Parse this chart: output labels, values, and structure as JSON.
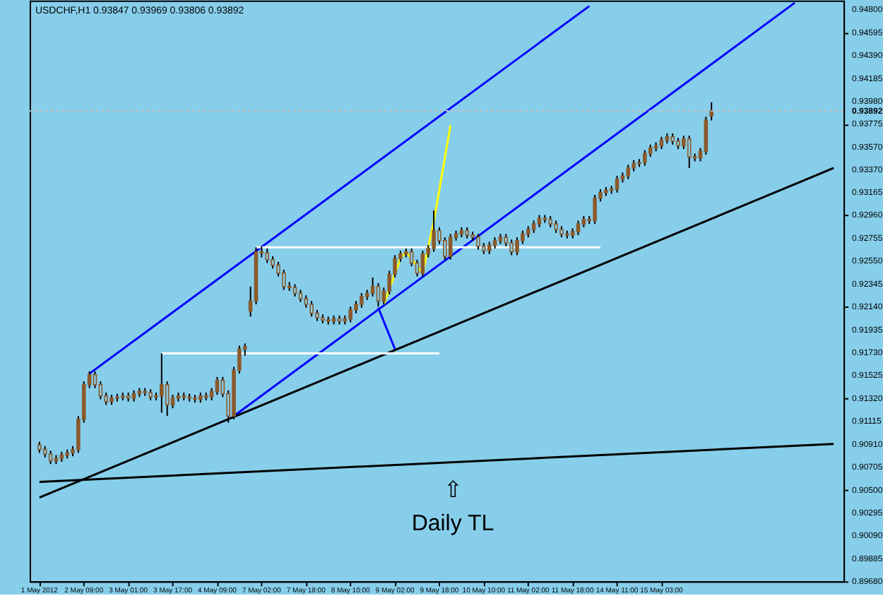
{
  "chart_data": {
    "type": "candlestick",
    "title": "USDCHF,H1  0.93847 0.93969 0.93806 0.93892",
    "color": "#8b5a2b",
    "categories": [
      "1 May 2012",
      null,
      null,
      null,
      null,
      null,
      null,
      null,
      "2 May 09:00",
      null,
      null,
      null,
      null,
      null,
      null,
      null,
      "3 May 01:00",
      null,
      null,
      null,
      null,
      null,
      null,
      null,
      "3 May 17:00",
      null,
      null,
      null,
      null,
      null,
      null,
      null,
      "4 May 09:00",
      null,
      null,
      null,
      null,
      null,
      null,
      null,
      "7 May 02:00",
      null,
      null,
      null,
      null,
      null,
      null,
      null,
      "7 May 18:00",
      null,
      null,
      null,
      null,
      null,
      null,
      null,
      "8 May 10:00",
      null,
      null,
      null,
      null,
      null,
      null,
      null,
      "9 May 02:00",
      null,
      null,
      null,
      null,
      null,
      null,
      null,
      "9 May 18:00",
      null,
      null,
      null,
      null,
      null,
      null,
      null,
      "10 May 10:00",
      null,
      null,
      null,
      null,
      null,
      null,
      null,
      "11 May 02:00",
      null,
      null,
      null,
      null,
      null,
      null,
      null,
      "11 May 18:00",
      null,
      null,
      null,
      null,
      null,
      null,
      null,
      "14 May 11:00",
      null,
      null,
      null,
      null,
      null,
      null,
      null,
      "15 May 03:00",
      null,
      null,
      null,
      null,
      null,
      null,
      null,
      null,
      null,
      null,
      null,
      null,
      null,
      null,
      null,
      null,
      null,
      null,
      null,
      null,
      null,
      null,
      null,
      null,
      null,
      null,
      null,
      null,
      null,
      null,
      null
    ],
    "ohlc": [
      [
        0.909,
        0.9093,
        0.9083,
        0.9086
      ],
      [
        0.9086,
        0.9089,
        0.9079,
        0.9082
      ],
      [
        0.9082,
        0.9085,
        0.9073,
        0.9076
      ],
      [
        0.9076,
        0.9081,
        0.9073,
        0.9078
      ],
      [
        0.9078,
        0.9084,
        0.9075,
        0.9081
      ],
      [
        0.9081,
        0.9086,
        0.9078,
        0.9083
      ],
      [
        0.9083,
        0.9089,
        0.908,
        0.9086
      ],
      [
        0.9086,
        0.9116,
        0.9083,
        0.9113
      ],
      [
        0.9113,
        0.9147,
        0.911,
        0.9144
      ],
      [
        0.9144,
        0.9156,
        0.9141,
        0.9153
      ],
      [
        0.9153,
        0.9156,
        0.9141,
        0.9144
      ],
      [
        0.9144,
        0.9147,
        0.9131,
        0.9134
      ],
      [
        0.9134,
        0.9137,
        0.9126,
        0.9129
      ],
      [
        0.9129,
        0.9135,
        0.9126,
        0.9132
      ],
      [
        0.9132,
        0.9136,
        0.9129,
        0.9133
      ],
      [
        0.9133,
        0.9137,
        0.913,
        0.9134
      ],
      [
        0.9134,
        0.9137,
        0.9129,
        0.9132
      ],
      [
        0.9132,
        0.9139,
        0.9129,
        0.9136
      ],
      [
        0.9136,
        0.9141,
        0.9133,
        0.9138
      ],
      [
        0.9138,
        0.9141,
        0.9134,
        0.9137
      ],
      [
        0.9137,
        0.914,
        0.913,
        0.9133
      ],
      [
        0.9133,
        0.9137,
        0.913,
        0.9134
      ],
      [
        0.9134,
        0.9172,
        0.9119,
        0.9144
      ],
      [
        0.9144,
        0.9147,
        0.9116,
        0.9126
      ],
      [
        0.9126,
        0.9135,
        0.9123,
        0.9132
      ],
      [
        0.9132,
        0.9137,
        0.9129,
        0.9134
      ],
      [
        0.9134,
        0.9137,
        0.913,
        0.9133
      ],
      [
        0.9133,
        0.9136,
        0.9129,
        0.9132
      ],
      [
        0.9132,
        0.9135,
        0.9128,
        0.9131
      ],
      [
        0.9131,
        0.9137,
        0.9128,
        0.9134
      ],
      [
        0.9134,
        0.9137,
        0.913,
        0.9133
      ],
      [
        0.9133,
        0.9141,
        0.913,
        0.9138
      ],
      [
        0.9138,
        0.9151,
        0.9135,
        0.9148
      ],
      [
        0.9148,
        0.9151,
        0.9133,
        0.9136
      ],
      [
        0.9136,
        0.9139,
        0.911,
        0.9116
      ],
      [
        0.9116,
        0.916,
        0.9113,
        0.9157
      ],
      [
        0.9157,
        0.9179,
        0.9154,
        0.9176
      ],
      [
        0.9176,
        0.9181,
        0.917,
        0.9178
      ],
      [
        0.921,
        0.9232,
        0.9205,
        0.9219
      ],
      [
        0.9219,
        0.9267,
        0.9216,
        0.9263
      ],
      [
        0.9263,
        0.9268,
        0.9258,
        0.9262
      ],
      [
        0.9262,
        0.9266,
        0.9253,
        0.9256
      ],
      [
        0.9256,
        0.9259,
        0.9248,
        0.9251
      ],
      [
        0.9251,
        0.9254,
        0.9241,
        0.9244
      ],
      [
        0.9244,
        0.9247,
        0.9229,
        0.9232
      ],
      [
        0.9232,
        0.9236,
        0.9228,
        0.9231
      ],
      [
        0.9231,
        0.9234,
        0.9223,
        0.9226
      ],
      [
        0.9226,
        0.9229,
        0.9218,
        0.9221
      ],
      [
        0.9221,
        0.9224,
        0.9213,
        0.9216
      ],
      [
        0.9216,
        0.9219,
        0.9205,
        0.9208
      ],
      [
        0.9208,
        0.9211,
        0.9201,
        0.9204
      ],
      [
        0.9204,
        0.9207,
        0.9199,
        0.9202
      ],
      [
        0.9202,
        0.9205,
        0.9198,
        0.9201
      ],
      [
        0.9201,
        0.9206,
        0.9198,
        0.9203
      ],
      [
        0.9203,
        0.9206,
        0.9198,
        0.9201
      ],
      [
        0.9201,
        0.9206,
        0.9198,
        0.9203
      ],
      [
        0.9203,
        0.9214,
        0.92,
        0.9211
      ],
      [
        0.9211,
        0.9219,
        0.9208,
        0.9216
      ],
      [
        0.9216,
        0.9226,
        0.9213,
        0.9223
      ],
      [
        0.9223,
        0.9229,
        0.922,
        0.9226
      ],
      [
        0.9226,
        0.924,
        0.9223,
        0.9232
      ],
      [
        0.9232,
        0.9235,
        0.9214,
        0.9219
      ],
      [
        0.9219,
        0.9231,
        0.9216,
        0.9228
      ],
      [
        0.9228,
        0.9246,
        0.9225,
        0.9243
      ],
      [
        0.9243,
        0.926,
        0.924,
        0.9257
      ],
      [
        0.9257,
        0.9264,
        0.9254,
        0.9261
      ],
      [
        0.9261,
        0.9266,
        0.9258,
        0.9263
      ],
      [
        0.9263,
        0.9266,
        0.925,
        0.9253
      ],
      [
        0.9253,
        0.9256,
        0.9241,
        0.9244
      ],
      [
        0.9244,
        0.9264,
        0.9241,
        0.9261
      ],
      [
        0.9261,
        0.9269,
        0.9258,
        0.9266
      ],
      [
        0.9266,
        0.93,
        0.9263,
        0.9282
      ],
      [
        0.9282,
        0.9285,
        0.927,
        0.9273
      ],
      [
        0.9273,
        0.9276,
        0.9256,
        0.9259
      ],
      [
        0.9259,
        0.9279,
        0.9256,
        0.9276
      ],
      [
        0.9276,
        0.9282,
        0.9273,
        0.9279
      ],
      [
        0.9279,
        0.9285,
        0.9276,
        0.9282
      ],
      [
        0.9282,
        0.9285,
        0.9275,
        0.9278
      ],
      [
        0.9278,
        0.9281,
        0.9273,
        0.9276
      ],
      [
        0.9276,
        0.9279,
        0.9265,
        0.9268
      ],
      [
        0.9268,
        0.9271,
        0.9261,
        0.9264
      ],
      [
        0.9264,
        0.9272,
        0.9261,
        0.9269
      ],
      [
        0.9269,
        0.9276,
        0.9266,
        0.9273
      ],
      [
        0.9273,
        0.9279,
        0.927,
        0.9276
      ],
      [
        0.9276,
        0.9279,
        0.9268,
        0.9271
      ],
      [
        0.9271,
        0.9274,
        0.926,
        0.9263
      ],
      [
        0.9263,
        0.9276,
        0.926,
        0.9273
      ],
      [
        0.9273,
        0.9282,
        0.927,
        0.9279
      ],
      [
        0.9279,
        0.9286,
        0.9276,
        0.9283
      ],
      [
        0.9283,
        0.9291,
        0.928,
        0.9288
      ],
      [
        0.9288,
        0.9296,
        0.9285,
        0.9293
      ],
      [
        0.9293,
        0.9296,
        0.9289,
        0.9292
      ],
      [
        0.9292,
        0.9295,
        0.9285,
        0.9288
      ],
      [
        0.9288,
        0.9291,
        0.928,
        0.9283
      ],
      [
        0.9283,
        0.9286,
        0.9276,
        0.9279
      ],
      [
        0.9279,
        0.9282,
        0.9275,
        0.9278
      ],
      [
        0.9278,
        0.9284,
        0.9275,
        0.9281
      ],
      [
        0.9281,
        0.9291,
        0.9278,
        0.9288
      ],
      [
        0.9288,
        0.9295,
        0.9285,
        0.9292
      ],
      [
        0.9292,
        0.9295,
        0.9288,
        0.9291
      ],
      [
        0.9291,
        0.9314,
        0.9288,
        0.9311
      ],
      [
        0.9311,
        0.9319,
        0.9308,
        0.9316
      ],
      [
        0.9316,
        0.9321,
        0.9313,
        0.9318
      ],
      [
        0.9318,
        0.9322,
        0.9315,
        0.9319
      ],
      [
        0.9319,
        0.9331,
        0.9316,
        0.9328
      ],
      [
        0.9328,
        0.9334,
        0.9325,
        0.9331
      ],
      [
        0.9331,
        0.9341,
        0.9328,
        0.9338
      ],
      [
        0.9338,
        0.9345,
        0.9335,
        0.9342
      ],
      [
        0.9342,
        0.9346,
        0.9339,
        0.9343
      ],
      [
        0.9343,
        0.9354,
        0.934,
        0.9351
      ],
      [
        0.9351,
        0.9359,
        0.9348,
        0.9356
      ],
      [
        0.9356,
        0.9361,
        0.9353,
        0.9358
      ],
      [
        0.9358,
        0.9366,
        0.9355,
        0.9363
      ],
      [
        0.9363,
        0.9369,
        0.936,
        0.9366
      ],
      [
        0.9366,
        0.9369,
        0.9359,
        0.9362
      ],
      [
        0.9362,
        0.9365,
        0.9355,
        0.9358
      ],
      [
        0.9358,
        0.9367,
        0.9355,
        0.9364
      ],
      [
        0.9364,
        0.9367,
        0.9338,
        0.9348
      ],
      [
        0.9348,
        0.9351,
        0.9344,
        0.9347
      ],
      [
        0.9347,
        0.9356,
        0.9344,
        0.9353
      ],
      [
        0.9353,
        0.9384,
        0.935,
        0.9381
      ],
      [
        0.93847,
        0.93969,
        0.93806,
        0.93892
      ],
      null,
      null,
      null,
      null,
      null,
      null,
      null,
      null,
      null,
      null,
      null,
      null,
      null,
      null,
      null,
      null,
      null,
      null,
      null,
      null,
      null,
      null
    ],
    "series": [
      {
        "type": "line",
        "color": "#0000ff",
        "values": [
          null,
          null,
          null,
          null,
          null,
          null,
          null,
          null,
          null,
          0.9154,
          null,
          null,
          null,
          null,
          null,
          null,
          null,
          null,
          null,
          null,
          null,
          null,
          null,
          null,
          null,
          null,
          null,
          null,
          null,
          null,
          null,
          null,
          null,
          null,
          null,
          null,
          null,
          null,
          null,
          null,
          null,
          null,
          null,
          null,
          null,
          null,
          null,
          null,
          null,
          null,
          null,
          null,
          null,
          null,
          null,
          null,
          null,
          null,
          null,
          null,
          null,
          null,
          null,
          null,
          null,
          null,
          null,
          null,
          null,
          null,
          null,
          null,
          null,
          null,
          null,
          null,
          null,
          null,
          null,
          null,
          null,
          null,
          null,
          null,
          null,
          null,
          null,
          null,
          null,
          null,
          null,
          null,
          null,
          null,
          null,
          null,
          null,
          null,
          null,
          0.9483,
          null,
          null,
          null,
          null,
          null,
          null,
          null,
          null,
          null,
          null,
          null,
          null,
          null,
          null,
          null,
          null,
          null,
          null,
          null,
          null,
          null,
          null,
          null,
          null,
          null,
          null,
          null,
          null,
          null,
          null,
          null,
          null,
          null,
          null,
          null,
          null,
          null,
          null,
          null,
          null,
          null,
          null,
          null,
          null
        ]
      },
      {
        "type": "line",
        "color": "#0000ff",
        "values": [
          null,
          null,
          null,
          null,
          null,
          null,
          null,
          null,
          null,
          null,
          null,
          null,
          null,
          null,
          null,
          null,
          null,
          null,
          null,
          null,
          null,
          null,
          null,
          null,
          null,
          null,
          null,
          null,
          null,
          null,
          null,
          null,
          null,
          null,
          null,
          0.9116,
          null,
          null,
          null,
          null,
          null,
          null,
          null,
          null,
          null,
          null,
          null,
          null,
          null,
          null,
          null,
          null,
          null,
          null,
          null,
          null,
          null,
          null,
          null,
          null,
          null,
          null,
          null,
          null,
          null,
          null,
          null,
          null,
          null,
          null,
          null,
          null,
          null,
          null,
          null,
          null,
          null,
          null,
          null,
          null,
          null,
          null,
          null,
          null,
          null,
          null,
          null,
          null,
          null,
          null,
          null,
          null,
          null,
          null,
          null,
          null,
          null,
          null,
          null,
          null,
          null,
          null,
          null,
          null,
          null,
          null,
          null,
          null,
          null,
          null,
          null,
          null,
          null,
          null,
          null,
          null,
          null,
          null,
          null,
          null,
          null,
          null,
          null,
          null,
          null,
          null,
          null,
          null,
          null,
          null,
          null,
          null,
          null,
          null,
          null,
          null,
          0.9486,
          null,
          null,
          null,
          null,
          null,
          null,
          null
        ]
      },
      {
        "type": "line",
        "color": "#000000",
        "values": [
          0.9043,
          null,
          null,
          null,
          null,
          null,
          null,
          null,
          null,
          null,
          null,
          null,
          null,
          null,
          null,
          null,
          null,
          null,
          null,
          null,
          null,
          null,
          null,
          null,
          null,
          null,
          null,
          null,
          null,
          null,
          null,
          null,
          null,
          null,
          null,
          null,
          null,
          null,
          null,
          null,
          null,
          null,
          null,
          null,
          null,
          null,
          null,
          null,
          null,
          null,
          null,
          null,
          null,
          null,
          null,
          null,
          null,
          null,
          null,
          null,
          null,
          null,
          null,
          null,
          null,
          null,
          null,
          null,
          null,
          null,
          null,
          null,
          null,
          null,
          null,
          null,
          null,
          null,
          null,
          null,
          null,
          null,
          null,
          null,
          null,
          null,
          null,
          null,
          null,
          null,
          null,
          null,
          null,
          null,
          null,
          null,
          null,
          null,
          null,
          null,
          null,
          null,
          null,
          null,
          null,
          null,
          null,
          null,
          null,
          null,
          null,
          null,
          null,
          null,
          null,
          null,
          null,
          null,
          null,
          null,
          null,
          null,
          null,
          null,
          null,
          null,
          null,
          null,
          null,
          null,
          null,
          null,
          null,
          null,
          null,
          null,
          null,
          null,
          null,
          null,
          null,
          null,
          null,
          0.9338
        ]
      },
      {
        "type": "line",
        "color": "#000000",
        "values": [
          0.9057,
          null,
          null,
          null,
          null,
          null,
          null,
          null,
          null,
          null,
          null,
          null,
          null,
          null,
          null,
          null,
          null,
          null,
          null,
          null,
          null,
          null,
          null,
          null,
          null,
          null,
          null,
          null,
          null,
          null,
          null,
          null,
          null,
          null,
          null,
          null,
          null,
          null,
          null,
          null,
          null,
          null,
          null,
          null,
          null,
          null,
          null,
          null,
          null,
          null,
          null,
          null,
          null,
          null,
          null,
          null,
          null,
          null,
          null,
          null,
          null,
          null,
          null,
          null,
          null,
          null,
          null,
          null,
          null,
          null,
          null,
          null,
          null,
          null,
          null,
          null,
          null,
          null,
          null,
          null,
          null,
          null,
          null,
          null,
          null,
          null,
          null,
          null,
          null,
          null,
          null,
          null,
          null,
          null,
          null,
          null,
          null,
          null,
          null,
          null,
          null,
          null,
          null,
          null,
          null,
          null,
          null,
          null,
          null,
          null,
          null,
          null,
          null,
          null,
          null,
          null,
          null,
          null,
          null,
          null,
          null,
          null,
          null,
          null,
          null,
          null,
          null,
          null,
          null,
          null,
          null,
          null,
          null,
          null,
          null,
          null,
          null,
          null,
          null,
          null,
          null,
          null,
          null,
          0.9091
        ]
      },
      {
        "type": "line",
        "color": "#ffffff",
        "values": [
          null,
          null,
          null,
          null,
          null,
          null,
          null,
          null,
          null,
          null,
          null,
          null,
          null,
          null,
          null,
          null,
          null,
          null,
          null,
          null,
          null,
          null,
          null,
          null,
          null,
          null,
          null,
          null,
          null,
          null,
          null,
          null,
          null,
          null,
          null,
          null,
          null,
          null,
          null,
          0.9267,
          null,
          null,
          null,
          null,
          null,
          null,
          null,
          null,
          null,
          null,
          null,
          null,
          null,
          null,
          null,
          null,
          null,
          null,
          null,
          null,
          null,
          null,
          null,
          null,
          null,
          null,
          null,
          null,
          null,
          null,
          null,
          null,
          null,
          null,
          null,
          null,
          null,
          null,
          null,
          null,
          null,
          null,
          null,
          null,
          null,
          null,
          null,
          null,
          null,
          null,
          null,
          null,
          null,
          null,
          null,
          null,
          null,
          null,
          null,
          null,
          null,
          0.9267,
          null,
          null,
          null,
          null,
          null,
          null,
          null,
          null,
          null,
          null,
          null,
          null,
          null,
          null,
          null,
          null,
          null,
          null,
          null,
          null,
          null,
          null,
          null,
          null,
          null,
          null,
          null,
          null,
          null,
          null,
          null,
          null,
          null,
          null,
          null,
          null,
          null,
          null,
          null,
          null,
          null,
          null
        ]
      },
      {
        "type": "line",
        "color": "#ffffff",
        "values": [
          null,
          null,
          null,
          null,
          null,
          null,
          null,
          null,
          null,
          null,
          null,
          null,
          null,
          null,
          null,
          null,
          null,
          null,
          null,
          null,
          null,
          null,
          0.9172,
          null,
          null,
          null,
          null,
          null,
          null,
          null,
          null,
          null,
          null,
          null,
          null,
          null,
          null,
          null,
          null,
          null,
          null,
          null,
          null,
          null,
          null,
          null,
          null,
          null,
          null,
          null,
          null,
          null,
          null,
          null,
          null,
          null,
          null,
          null,
          null,
          null,
          null,
          null,
          null,
          null,
          null,
          null,
          null,
          null,
          null,
          null,
          null,
          null,
          0.9172,
          null,
          null,
          null,
          null,
          null,
          null,
          null,
          null,
          null,
          null,
          null,
          null,
          null,
          null,
          null,
          null,
          null,
          null,
          null,
          null,
          null,
          null,
          null,
          null,
          null,
          null,
          null,
          null,
          null,
          null,
          null,
          null,
          null,
          null,
          null,
          null,
          null,
          null,
          null,
          null,
          null,
          null,
          null,
          null,
          null,
          null,
          null,
          null,
          null,
          null,
          null,
          null,
          null,
          null,
          null,
          null,
          null,
          null,
          null,
          null,
          null,
          null,
          null,
          null,
          null,
          null,
          null,
          null,
          null,
          null,
          null
        ]
      },
      {
        "type": "line",
        "color": "#ffff00",
        "values": [
          null,
          null,
          null,
          null,
          null,
          null,
          null,
          null,
          null,
          null,
          null,
          null,
          null,
          null,
          null,
          null,
          null,
          null,
          null,
          null,
          null,
          null,
          null,
          null,
          null,
          null,
          null,
          null,
          null,
          null,
          null,
          null,
          null,
          null,
          null,
          null,
          null,
          null,
          null,
          null,
          null,
          null,
          null,
          null,
          null,
          null,
          null,
          null,
          null,
          null,
          null,
          null,
          null,
          null,
          null,
          null,
          null,
          null,
          null,
          null,
          null,
          null,
          0.9216,
          null,
          null,
          0.9257,
          0.9263,
          null,
          null,
          0.9244,
          null,
          0.929,
          null,
          null,
          0.9376,
          null,
          null,
          null,
          null,
          null,
          null,
          null,
          null,
          null,
          null,
          null,
          null,
          null,
          null,
          null,
          null,
          null,
          null,
          null,
          null,
          null,
          null,
          null,
          null,
          null,
          null,
          null,
          null,
          null,
          null,
          null,
          null,
          null,
          null,
          null,
          null,
          null,
          null,
          null,
          null,
          null,
          null,
          null,
          null,
          null,
          null,
          null,
          null,
          null,
          null,
          null,
          null,
          null,
          null,
          null,
          null,
          null,
          null,
          null,
          null,
          null,
          null,
          null,
          null,
          null,
          null,
          null,
          null,
          null
        ]
      },
      {
        "type": "line",
        "color": "#0000ff",
        "values": [
          null,
          null,
          null,
          null,
          null,
          null,
          null,
          null,
          null,
          null,
          null,
          null,
          null,
          null,
          null,
          null,
          null,
          null,
          null,
          null,
          null,
          null,
          null,
          null,
          null,
          null,
          null,
          null,
          null,
          null,
          null,
          null,
          null,
          null,
          null,
          null,
          null,
          null,
          null,
          null,
          null,
          null,
          null,
          null,
          null,
          null,
          null,
          null,
          null,
          null,
          null,
          null,
          null,
          null,
          null,
          null,
          null,
          null,
          null,
          null,
          null,
          0.9213,
          null,
          null,
          0.9176,
          null,
          null,
          null,
          null,
          null,
          null,
          null,
          null,
          null,
          null,
          null,
          null,
          null,
          null,
          null,
          null,
          null,
          null,
          null,
          null,
          null,
          null,
          null,
          null,
          null,
          null,
          null,
          null,
          null,
          null,
          null,
          null,
          null,
          null,
          null,
          null,
          null,
          null,
          null,
          null,
          null,
          null,
          null,
          null,
          null,
          null,
          null,
          null,
          null,
          null,
          null,
          null,
          null,
          null,
          null,
          null,
          null,
          null,
          null,
          null,
          null,
          null,
          null,
          null,
          null,
          null,
          null,
          null,
          null,
          null,
          null,
          null,
          null,
          null,
          null,
          null,
          null,
          null,
          null
        ]
      }
    ],
    "ref_lines": [
      {
        "axis": "y",
        "value": 0.93892,
        "label": "0.93892",
        "color": "#c0c0c0",
        "line_style": "dotted"
      }
    ],
    "annotations": [
      "⇧",
      "Daily TL"
    ],
    "ylim": [
      0.8968,
      0.9488
    ],
    "yticks": [
      {
        "value": 0.8968,
        "label": "0.89680"
      },
      {
        "value": 0.89885,
        "label": "0.89885"
      },
      {
        "value": 0.9009,
        "label": "0.90090"
      },
      {
        "value": 0.90295,
        "label": "0.90295"
      },
      {
        "value": 0.905,
        "label": "0.90500"
      },
      {
        "value": 0.90705,
        "label": "0.90705"
      },
      {
        "value": 0.9091,
        "label": "0.90910"
      },
      {
        "value": 0.91115,
        "label": "0.91115"
      },
      {
        "value": 0.9132,
        "label": "0.91320"
      },
      {
        "value": 0.91525,
        "label": "0.91525"
      },
      {
        "value": 0.9173,
        "label": "0.91730"
      },
      {
        "value": 0.91935,
        "label": "0.91935"
      },
      {
        "value": 0.9214,
        "label": "0.92140"
      },
      {
        "value": 0.92345,
        "label": "0.92345"
      },
      {
        "value": 0.9255,
        "label": "0.92550"
      },
      {
        "value": 0.92755,
        "label": "0.92755"
      },
      {
        "value": 0.9296,
        "label": "0.92960"
      },
      {
        "value": 0.93165,
        "label": "0.93165"
      },
      {
        "value": 0.9337,
        "label": "0.93370"
      },
      {
        "value": 0.9357,
        "label": "0.93570"
      },
      {
        "value": 0.93775,
        "label": "0.93775"
      },
      {
        "value": 0.9398,
        "label": "0.93980"
      },
      {
        "value": 0.94185,
        "label": "0.94185"
      },
      {
        "value": 0.9439,
        "label": "0.94390"
      },
      {
        "value": 0.94595,
        "label": "0.94595"
      },
      {
        "value": 0.948,
        "label": "0.94800"
      }
    ]
  }
}
